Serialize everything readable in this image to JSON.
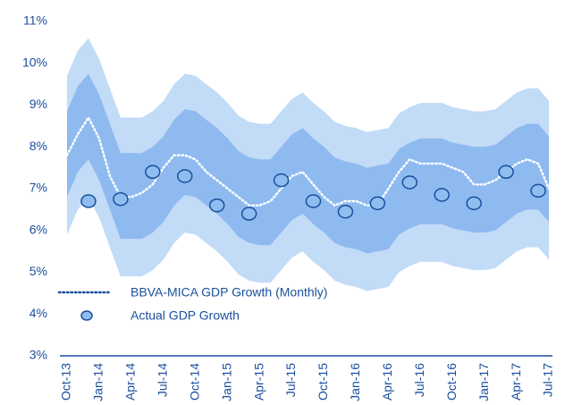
{
  "chart_data": {
    "type": "fan",
    "categories": [
      "Oct-13",
      null,
      null,
      "Jan-14",
      null,
      null,
      "Apr-14",
      null,
      null,
      "Jul-14",
      null,
      null,
      "Oct-14",
      null,
      null,
      "Jan-15",
      null,
      null,
      "Apr-15",
      null,
      null,
      "Jul-15",
      null,
      null,
      "Oct-15",
      null,
      null,
      "Jan-16",
      null,
      null,
      "Apr-16",
      null,
      null,
      "Jul-16",
      null,
      null,
      "Oct-16",
      null,
      null,
      "Jan-17",
      null,
      null,
      "Apr-17",
      null,
      null,
      "Jul-17"
    ],
    "series": [
      {
        "name": "BBVA-MICA GDP Growth (Monthly)",
        "color": "#ffffff",
        "style": "dotted",
        "values": [
          7.8,
          8.3,
          8.7,
          8.2,
          7.3,
          6.8,
          6.8,
          6.9,
          7.1,
          7.5,
          7.8,
          7.8,
          7.7,
          7.4,
          7.2,
          7.0,
          6.8,
          6.6,
          6.6,
          6.7,
          7.0,
          7.3,
          7.4,
          7.1,
          6.8,
          6.6,
          6.7,
          6.7,
          6.6,
          6.6,
          7.0,
          7.4,
          7.7,
          7.6,
          7.6,
          7.6,
          7.5,
          7.4,
          7.1,
          7.1,
          7.2,
          7.4,
          7.6,
          7.7,
          7.6,
          7.0
        ]
      },
      {
        "name": "Actual GDP Growth",
        "color": "#8fbdf0",
        "style": "marker",
        "values": [
          null,
          null,
          6.7,
          null,
          null,
          6.75,
          null,
          null,
          7.4,
          null,
          null,
          7.3,
          null,
          null,
          6.6,
          null,
          null,
          6.4,
          null,
          null,
          7.2,
          null,
          null,
          6.7,
          null,
          null,
          6.45,
          null,
          null,
          6.65,
          null,
          null,
          7.15,
          null,
          null,
          6.85,
          null,
          null,
          6.65,
          null,
          null,
          7.4,
          null,
          null,
          6.95,
          null
        ]
      }
    ],
    "bands": [
      {
        "color": "#c2dbf7",
        "upper": [
          9.7,
          10.3,
          10.6,
          10.1,
          9.4,
          8.7,
          8.7,
          8.7,
          8.85,
          9.1,
          9.5,
          9.75,
          9.7,
          9.5,
          9.3,
          9.05,
          8.75,
          8.6,
          8.55,
          8.55,
          8.85,
          9.15,
          9.3,
          9.05,
          8.85,
          8.6,
          8.5,
          8.45,
          8.35,
          8.4,
          8.45,
          8.8,
          8.95,
          9.05,
          9.05,
          9.05,
          8.95,
          8.9,
          8.85,
          8.85,
          8.9,
          9.1,
          9.3,
          9.4,
          9.4,
          9.1
        ],
        "lower": [
          5.9,
          6.5,
          6.8,
          6.3,
          5.6,
          4.9,
          4.9,
          4.9,
          5.05,
          5.3,
          5.7,
          5.95,
          5.9,
          5.7,
          5.5,
          5.25,
          4.95,
          4.8,
          4.75,
          4.75,
          5.05,
          5.35,
          5.5,
          5.25,
          5.05,
          4.8,
          4.7,
          4.65,
          4.55,
          4.6,
          4.65,
          5.0,
          5.15,
          5.25,
          5.25,
          5.25,
          5.15,
          5.1,
          5.05,
          5.05,
          5.1,
          5.3,
          5.5,
          5.6,
          5.6,
          5.3
        ]
      },
      {
        "color": "#8ebaf0",
        "upper": [
          8.85,
          9.45,
          9.75,
          9.25,
          8.55,
          7.85,
          7.85,
          7.85,
          8.0,
          8.25,
          8.65,
          8.9,
          8.85,
          8.65,
          8.45,
          8.2,
          7.9,
          7.75,
          7.7,
          7.7,
          8.0,
          8.3,
          8.45,
          8.2,
          8.0,
          7.75,
          7.65,
          7.6,
          7.5,
          7.55,
          7.6,
          7.95,
          8.1,
          8.2,
          8.2,
          8.2,
          8.1,
          8.05,
          8.0,
          8.0,
          8.05,
          8.25,
          8.45,
          8.55,
          8.55,
          8.25
        ],
        "lower": [
          6.8,
          7.4,
          7.7,
          7.2,
          6.5,
          5.8,
          5.8,
          5.8,
          5.95,
          6.2,
          6.6,
          6.85,
          6.8,
          6.6,
          6.4,
          6.15,
          5.85,
          5.7,
          5.65,
          5.65,
          5.95,
          6.25,
          6.4,
          6.15,
          5.95,
          5.7,
          5.6,
          5.55,
          5.45,
          5.5,
          5.55,
          5.9,
          6.05,
          6.15,
          6.15,
          6.15,
          6.05,
          6.0,
          5.95,
          5.95,
          6.0,
          6.2,
          6.4,
          6.5,
          6.5,
          6.2
        ]
      }
    ],
    "ylim": [
      3,
      11
    ],
    "yticks": [
      {
        "value": 3,
        "label": "3%"
      },
      {
        "value": 4,
        "label": "4%"
      },
      {
        "value": 5,
        "label": "5%"
      },
      {
        "value": 6,
        "label": "6%"
      },
      {
        "value": 7,
        "label": "7%"
      },
      {
        "value": 8,
        "label": "8%"
      },
      {
        "value": 9,
        "label": "9%"
      },
      {
        "value": 10,
        "label": "10%"
      },
      {
        "value": 11,
        "label": "11%"
      }
    ],
    "grid": false,
    "legend": "lower left",
    "axis_color": "#1a4f9c"
  }
}
